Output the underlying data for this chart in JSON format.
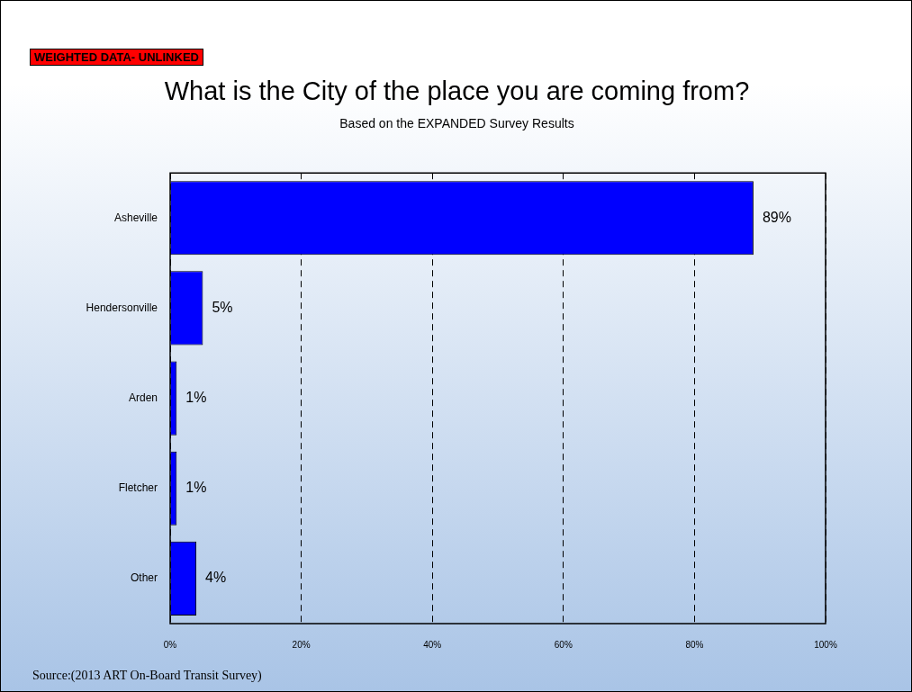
{
  "chart_data": {
    "type": "bar",
    "orientation": "horizontal",
    "title": "What is the City of the place you are coming from?",
    "subtitle": "Based on the EXPANDED Survey Results",
    "annotations": [
      "WEIGHTED DATA- UNLINKED",
      "Source:(2013 ART On-Board Transit Survey)"
    ],
    "categories": [
      "Asheville",
      "Hendersonville",
      "Arden",
      "Fletcher",
      "Other"
    ],
    "values": [
      89,
      5,
      1,
      1,
      4
    ],
    "value_labels": [
      "89%",
      "5%",
      "1%",
      "1%",
      "4%"
    ],
    "color": "#0000ff",
    "xlim": [
      0,
      100
    ],
    "xticks": [
      {
        "value": 0,
        "label": "0%"
      },
      {
        "value": 20,
        "label": "20%"
      },
      {
        "value": 40,
        "label": "40%"
      },
      {
        "value": 60,
        "label": "60%"
      },
      {
        "value": 80,
        "label": "80%"
      },
      {
        "value": 100,
        "label": "100%"
      }
    ],
    "grid": "x"
  }
}
